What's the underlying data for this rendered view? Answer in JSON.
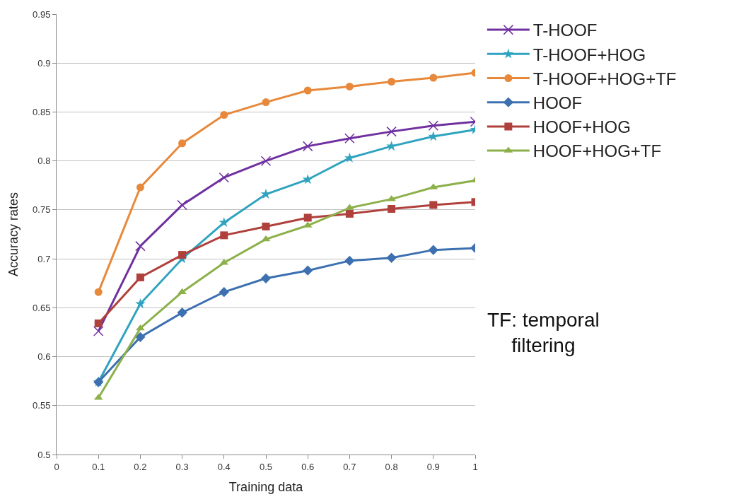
{
  "chart_data": {
    "type": "line",
    "xlabel": "Training data",
    "ylabel": "Accuracy rates",
    "x": [
      0.1,
      0.2,
      0.3,
      0.4,
      0.5,
      0.6,
      0.7,
      0.8,
      0.9,
      1
    ],
    "xlim": [
      0,
      1
    ],
    "xticks": [
      0,
      0.1,
      0.2,
      0.3,
      0.4,
      0.5,
      0.6,
      0.7,
      0.8,
      0.9,
      1
    ],
    "ylim": [
      0.5,
      0.95
    ],
    "yticks": [
      0.5,
      0.55,
      0.6,
      0.65,
      0.7,
      0.75,
      0.8,
      0.85,
      0.9,
      0.95
    ],
    "grid": "y",
    "legend": "right",
    "line_style": "solid",
    "series": [
      {
        "name": "T-HOOF",
        "color": "#7030a0",
        "marker": "cross",
        "values": [
          0.626,
          0.713,
          0.755,
          0.783,
          0.8,
          0.815,
          0.823,
          0.83,
          0.836,
          0.84
        ]
      },
      {
        "name": "T-HOOF+HOG",
        "color": "#2fa3bf",
        "marker": "star",
        "values": [
          0.574,
          0.654,
          0.7,
          0.737,
          0.766,
          0.781,
          0.803,
          0.815,
          0.825,
          0.832
        ]
      },
      {
        "name": "T-HOOF+HOG+TF",
        "color": "#e8883a",
        "marker": "circle",
        "values": [
          0.666,
          0.773,
          0.818,
          0.847,
          0.86,
          0.872,
          0.876,
          0.881,
          0.885,
          0.89
        ]
      },
      {
        "name": "HOOF",
        "color": "#3d70b0",
        "marker": "diamond",
        "values": [
          0.574,
          0.62,
          0.645,
          0.666,
          0.68,
          0.688,
          0.698,
          0.701,
          0.709,
          0.711
        ]
      },
      {
        "name": "HOOF+HOG",
        "color": "#b0403c",
        "marker": "square",
        "values": [
          0.634,
          0.681,
          0.704,
          0.724,
          0.733,
          0.742,
          0.746,
          0.751,
          0.755,
          0.758
        ]
      },
      {
        "name": "HOOF+HOG+TF",
        "color": "#8cb04a",
        "marker": "triangle",
        "values": [
          0.558,
          0.629,
          0.666,
          0.696,
          0.72,
          0.734,
          0.752,
          0.761,
          0.773,
          0.78
        ]
      }
    ],
    "annotations": [
      "TF: temporal\nfiltering"
    ]
  }
}
